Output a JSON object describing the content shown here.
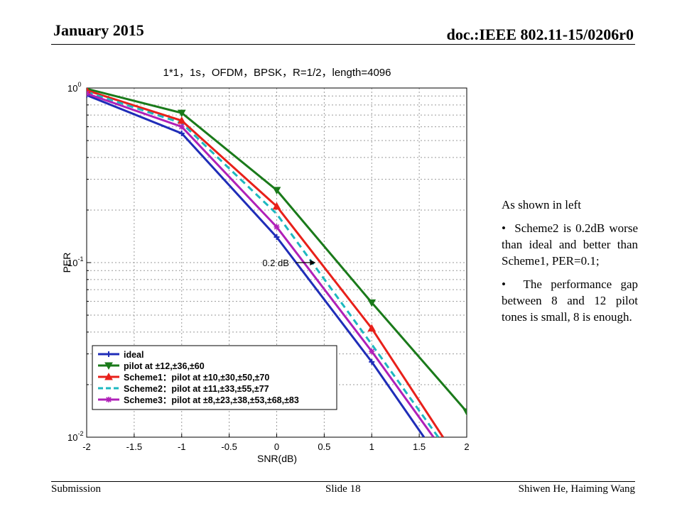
{
  "slide": {
    "date": "January 2015",
    "doc_id": "doc.:IEEE 802.11-15/0206r0",
    "footer_left": "Submission",
    "footer_center": "Slide 18",
    "footer_right": "Shiwen He, Haiming Wang"
  },
  "notes": {
    "intro": "As shown in left",
    "bullets": [
      "Scheme2 is 0.2dB worse than ideal and better than Scheme1, PER=0.1;",
      "The performance gap between 8 and 12 pilot tones is small, 8 is enough."
    ],
    "bullet_char": "•"
  },
  "chart_data": {
    "type": "line",
    "title": "1*1，1s，OFDM，BPSK，R=1/2，length=4096",
    "xlabel": "SNR(dB)",
    "ylabel": "PER",
    "xlim": [
      -2,
      2
    ],
    "ylim": [
      0.01,
      1
    ],
    "yscale": "log",
    "grid": true,
    "legend_position": "bottom-left",
    "x_ticks": [
      "-2",
      "-1.5",
      "-1",
      "-0.5",
      "0",
      "0.5",
      "1",
      "1.5",
      "2"
    ],
    "y_ticks": [
      {
        "base": "10",
        "exp": "0"
      },
      {
        "base": "10",
        "exp": "-1"
      },
      {
        "base": "10",
        "exp": "-2"
      }
    ],
    "annotation": {
      "text": "0.2 dB",
      "x": 0.41,
      "y": 0.1
    },
    "series": [
      {
        "name": "ideal",
        "color": "#1f2db8",
        "dash": false,
        "marker": "plus",
        "x": [
          -2,
          -1,
          0,
          1,
          1.55
        ],
        "y": [
          0.91,
          0.55,
          0.14,
          0.027,
          0.01
        ]
      },
      {
        "name": "pilot at ±12,±36,±60",
        "color": "#1a7a1a",
        "dash": false,
        "marker": "triangle-down",
        "x": [
          -2,
          -1,
          0,
          1,
          2
        ],
        "y": [
          0.99,
          0.72,
          0.26,
          0.059,
          0.014
        ]
      },
      {
        "name": "Scheme1：pilot at ±10,±30,±50,±70",
        "color": "#e8201a",
        "dash": false,
        "marker": "triangle-up",
        "x": [
          -2,
          -1,
          0,
          1,
          1.75
        ],
        "y": [
          0.97,
          0.65,
          0.21,
          0.042,
          0.01
        ]
      },
      {
        "name": "Scheme2：pilot at ±11,±33,±55,±77",
        "color": "#1db8c0",
        "dash": true,
        "marker": "none",
        "x": [
          -2,
          -1,
          0,
          1,
          1.7
        ],
        "y": [
          0.95,
          0.63,
          0.19,
          0.034,
          0.01
        ]
      },
      {
        "name": "Scheme3：pilot at ±8,±23,±38,±53,±68,±83",
        "color": "#b020b8",
        "dash": false,
        "marker": "star",
        "x": [
          -2,
          -1,
          0,
          1,
          1.65
        ],
        "y": [
          0.93,
          0.6,
          0.16,
          0.031,
          0.01
        ]
      }
    ]
  }
}
